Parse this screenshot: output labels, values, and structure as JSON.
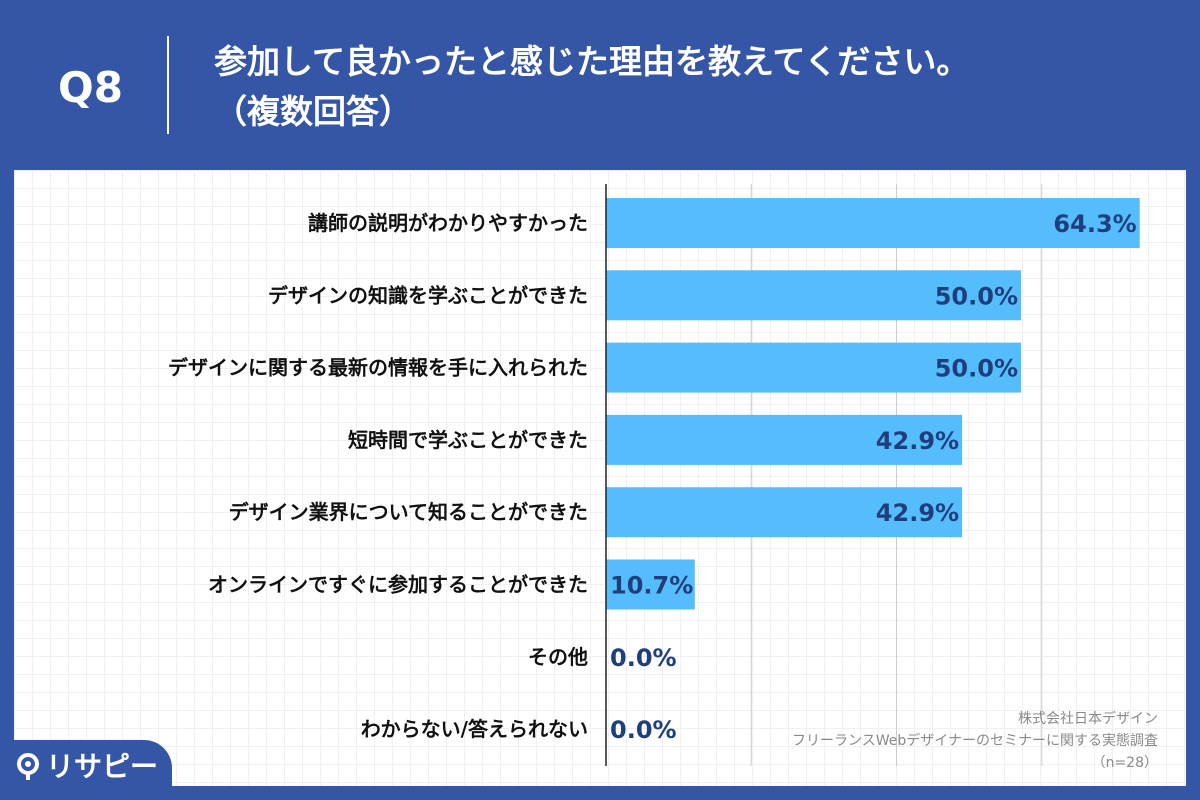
{
  "header": {
    "question_number": "Q8",
    "title_line1": "参加して良かったと感じた理由を教えてください。",
    "title_line2": "（複数回答）"
  },
  "colors": {
    "background": "#3556a6",
    "bar": "#56bdfc",
    "value_label": "#1f3f7c",
    "panel": "#ffffff"
  },
  "chart_data": {
    "type": "bar",
    "orientation": "horizontal",
    "title": "参加して良かったと感じた理由を教えてください。（複数回答）",
    "categories": [
      "講師の説明がわかりやすかった",
      "デザインの知識を学ぶことができた",
      "デザインに関する最新の情報を手に入れられた",
      "短時間で学ぶことができた",
      "デザイン業界について知ることができた",
      "オンラインですぐに参加することができた",
      "その他",
      "わからない/答えられない"
    ],
    "values": [
      64.3,
      50.0,
      50.0,
      42.9,
      42.9,
      10.7,
      0.0,
      0.0
    ],
    "value_labels": [
      "64.3%",
      "50.0%",
      "50.0%",
      "42.9%",
      "42.9%",
      "10.7%",
      "0.0%",
      "0.0%"
    ],
    "xlim": [
      0,
      70
    ],
    "unit": "%",
    "grid": true
  },
  "source": {
    "line1": "株式会社日本デザイン",
    "line2": "フリーランスWebデザイナーのセミナーに関する実態調査",
    "line3": "（n=28）"
  },
  "logo": {
    "text": "リサピー",
    "icon": "pin-icon"
  }
}
